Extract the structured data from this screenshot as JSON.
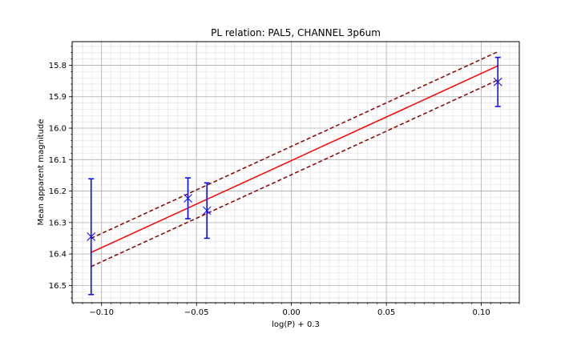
{
  "chart_data": {
    "type": "scatter",
    "title": "PL relation: PAL5, CHANNEL 3p6um",
    "xlabel": "log(P) + 0.3",
    "ylabel": "Mean apparent magnitude",
    "xlim": [
      -0.1155,
      0.12
    ],
    "ylim": [
      16.555,
      15.725
    ],
    "y_inverted": true,
    "x_ticks": [
      -0.1,
      -0.05,
      0.0,
      0.05,
      0.1
    ],
    "x_tick_labels": [
      "−0.10",
      "−0.05",
      "0.00",
      "0.05",
      "0.10"
    ],
    "y_ticks": [
      15.8,
      15.9,
      16.0,
      16.1,
      16.2,
      16.3,
      16.4,
      16.5
    ],
    "y_tick_labels": [
      "15.8",
      "15.9",
      "16.0",
      "16.1",
      "16.2",
      "16.3",
      "16.4",
      "16.5"
    ],
    "grid": true,
    "minor_grid": true,
    "points": {
      "x": [
        -0.1055,
        -0.0545,
        -0.0445,
        0.1087
      ],
      "y": [
        16.345,
        16.223,
        16.262,
        15.853
      ],
      "yerr": [
        0.184,
        0.065,
        0.088,
        0.078
      ],
      "marker": "x",
      "color": "#0000ff"
    },
    "fit_line": {
      "x": [
        -0.1055,
        0.1087
      ],
      "y": [
        16.395,
        15.802
      ],
      "color": "#ff0000",
      "style": "solid"
    },
    "bounds": [
      {
        "x": [
          -0.1055,
          0.1087
        ],
        "y": [
          16.35,
          15.757
        ],
        "color": "#8b0000",
        "style": "dashed"
      },
      {
        "x": [
          -0.1055,
          0.1087
        ],
        "y": [
          16.44,
          15.847
        ],
        "color": "#8b0000",
        "style": "dashed"
      }
    ]
  }
}
